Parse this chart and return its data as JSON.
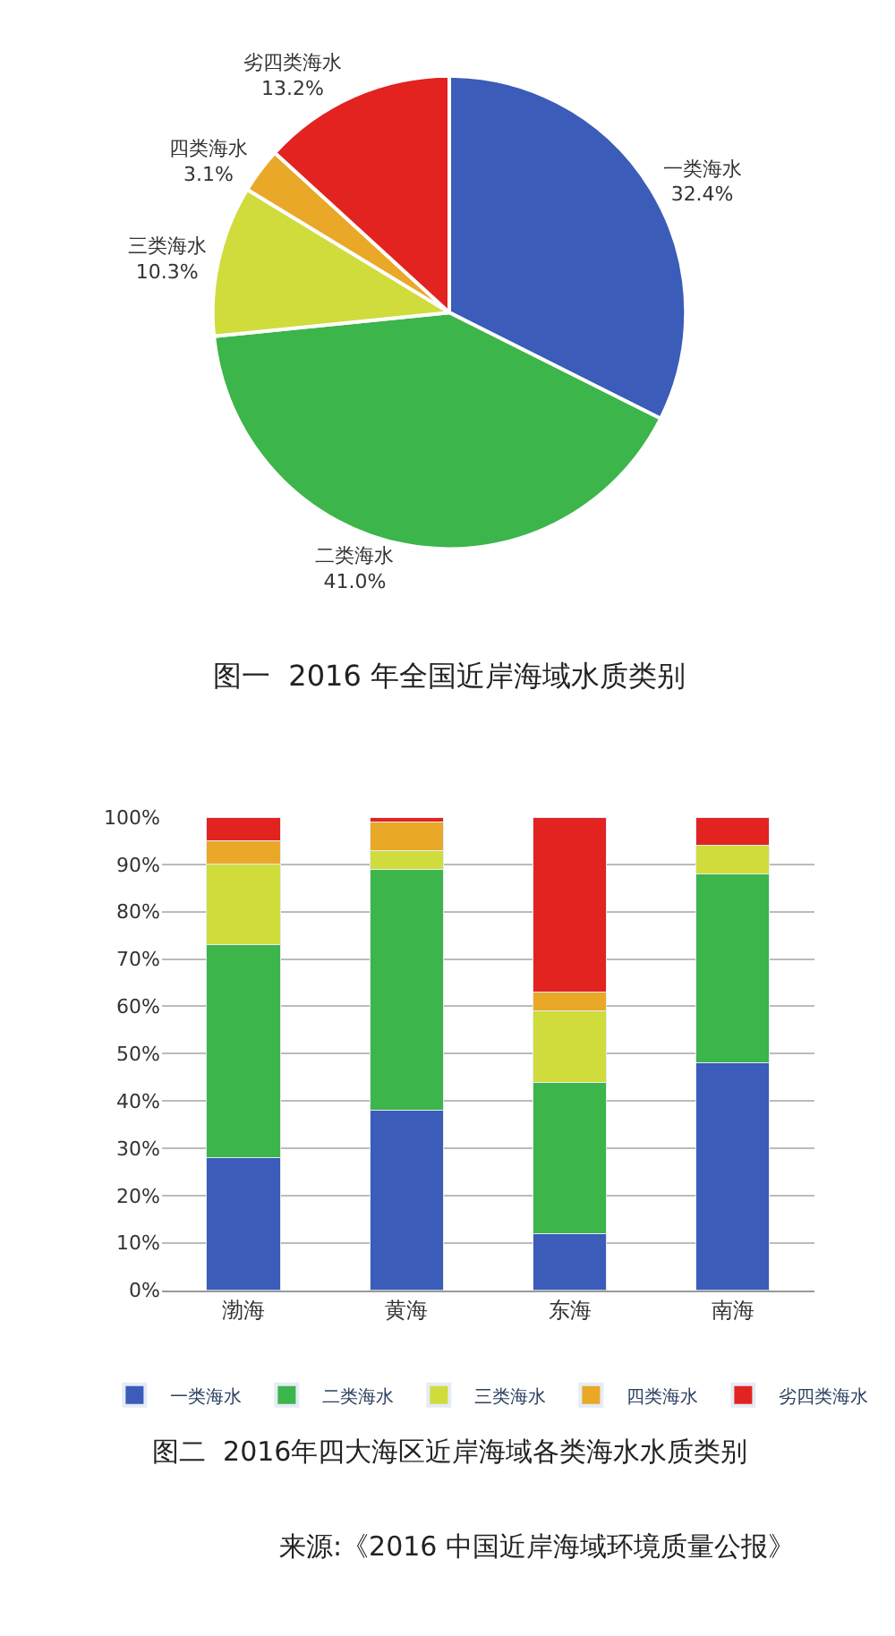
{
  "chart_data": [
    {
      "type": "pie",
      "title": "图一  2016 年全国近岸海域水质类别",
      "categories": [
        "一类海水",
        "二类海水",
        "三类海水",
        "四类海水",
        "劣四类海水"
      ],
      "values": [
        32.4,
        41.0,
        10.3,
        3.1,
        13.2
      ],
      "value_labels": [
        "32.4%",
        "41.0%",
        "10.3%",
        "3.1%",
        "13.2%"
      ],
      "colors": [
        "#3b5cb8",
        "#3cb54a",
        "#cfdc3c",
        "#eaa828",
        "#e2231f"
      ],
      "legend": false
    },
    {
      "type": "bar",
      "stacked": true,
      "title": "图二  2016年四大海区近岸海域各类海水水质类别",
      "categories": [
        "渤海",
        "黄海",
        "东海",
        "南海"
      ],
      "series": [
        {
          "name": "一类海水",
          "color": "#3b5cb8",
          "values": [
            28,
            38,
            12,
            48
          ]
        },
        {
          "name": "二类海水",
          "color": "#3cb54a",
          "values": [
            45,
            51,
            32,
            40
          ]
        },
        {
          "name": "三类海水",
          "color": "#cfdc3c",
          "values": [
            17,
            4,
            15,
            6
          ]
        },
        {
          "name": "四类海水",
          "color": "#eaa828",
          "values": [
            5,
            6,
            4,
            0
          ]
        },
        {
          "name": "劣四类海水",
          "color": "#e2231f",
          "values": [
            5,
            1,
            37,
            6
          ]
        }
      ],
      "ylim": [
        0,
        100
      ],
      "yticks": [
        {
          "value": 0,
          "label": "0%"
        },
        {
          "value": 10,
          "label": "10%"
        },
        {
          "value": 20,
          "label": "20%"
        },
        {
          "value": 30,
          "label": "30%"
        },
        {
          "value": 40,
          "label": "40%"
        },
        {
          "value": 50,
          "label": "50%"
        },
        {
          "value": 60,
          "label": "60%"
        },
        {
          "value": 70,
          "label": "70%"
        },
        {
          "value": 80,
          "label": "80%"
        },
        {
          "value": 90,
          "label": "90%"
        },
        {
          "value": 100,
          "label": "100%"
        }
      ],
      "grid": "y",
      "legend": "bottom",
      "annotations": [
        "来源:《2016 中国近岸海域环境质量公报》"
      ]
    }
  ]
}
